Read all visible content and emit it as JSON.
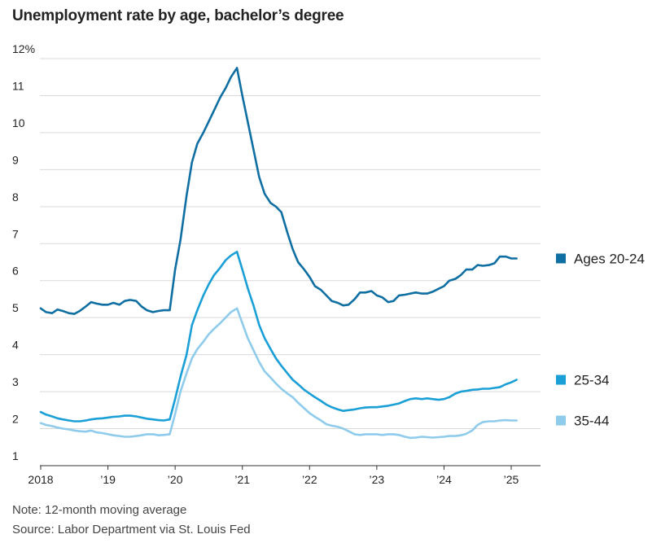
{
  "title": "Unemployment rate by age, bachelor’s degree",
  "note": "Note: 12-month moving average",
  "source": "Source: Labor Department via St. Louis Fed",
  "chart_data": {
    "type": "line",
    "title": "Unemployment rate by age, bachelor’s degree",
    "xlabel": "",
    "ylabel": "",
    "xlim": [
      2018,
      2025.45
    ],
    "ylim": [
      1,
      12
    ],
    "grid": true,
    "legend": "right",
    "x_ticks": [
      {
        "value": 2018,
        "label": "2018"
      },
      {
        "value": 2019,
        "label": "’19"
      },
      {
        "value": 2020,
        "label": "’20"
      },
      {
        "value": 2021,
        "label": "’21"
      },
      {
        "value": 2022,
        "label": "’22"
      },
      {
        "value": 2023,
        "label": "’23"
      },
      {
        "value": 2024,
        "label": "’24"
      },
      {
        "value": 2025,
        "label": "’25"
      }
    ],
    "y_ticks": [
      {
        "value": 12,
        "label": "12%"
      },
      {
        "value": 11,
        "label": "11"
      },
      {
        "value": 10,
        "label": "10"
      },
      {
        "value": 9,
        "label": "9"
      },
      {
        "value": 8,
        "label": "8"
      },
      {
        "value": 7,
        "label": "7"
      },
      {
        "value": 6,
        "label": "6"
      },
      {
        "value": 5,
        "label": "5"
      },
      {
        "value": 4,
        "label": "4"
      },
      {
        "value": 3,
        "label": "3"
      },
      {
        "value": 2,
        "label": "2"
      },
      {
        "value": 1,
        "label": "1"
      }
    ],
    "series": [
      {
        "name": "Ages 20-24",
        "color": "#0f6fa3",
        "points": [
          [
            2018.0,
            5.25
          ],
          [
            2018.08,
            5.15
          ],
          [
            2018.17,
            5.12
          ],
          [
            2018.25,
            5.22
          ],
          [
            2018.33,
            5.18
          ],
          [
            2018.42,
            5.12
          ],
          [
            2018.5,
            5.1
          ],
          [
            2018.58,
            5.18
          ],
          [
            2018.67,
            5.3
          ],
          [
            2018.75,
            5.42
          ],
          [
            2018.83,
            5.38
          ],
          [
            2018.92,
            5.35
          ],
          [
            2019.0,
            5.35
          ],
          [
            2019.08,
            5.4
          ],
          [
            2019.17,
            5.35
          ],
          [
            2019.25,
            5.45
          ],
          [
            2019.33,
            5.48
          ],
          [
            2019.42,
            5.45
          ],
          [
            2019.5,
            5.3
          ],
          [
            2019.58,
            5.2
          ],
          [
            2019.67,
            5.15
          ],
          [
            2019.75,
            5.18
          ],
          [
            2019.83,
            5.2
          ],
          [
            2019.92,
            5.2
          ],
          [
            2020.0,
            6.3
          ],
          [
            2020.08,
            7.1
          ],
          [
            2020.17,
            8.3
          ],
          [
            2020.25,
            9.2
          ],
          [
            2020.33,
            9.7
          ],
          [
            2020.42,
            10.0
          ],
          [
            2020.5,
            10.3
          ],
          [
            2020.58,
            10.6
          ],
          [
            2020.67,
            10.95
          ],
          [
            2020.75,
            11.2
          ],
          [
            2020.83,
            11.5
          ],
          [
            2020.92,
            11.75
          ],
          [
            2021.0,
            11.0
          ],
          [
            2021.08,
            10.3
          ],
          [
            2021.17,
            9.5
          ],
          [
            2021.25,
            8.8
          ],
          [
            2021.33,
            8.35
          ],
          [
            2021.42,
            8.1
          ],
          [
            2021.5,
            8.0
          ],
          [
            2021.58,
            7.85
          ],
          [
            2021.67,
            7.3
          ],
          [
            2021.75,
            6.85
          ],
          [
            2021.83,
            6.5
          ],
          [
            2021.92,
            6.3
          ],
          [
            2022.0,
            6.1
          ],
          [
            2022.08,
            5.85
          ],
          [
            2022.17,
            5.75
          ],
          [
            2022.25,
            5.6
          ],
          [
            2022.33,
            5.45
          ],
          [
            2022.42,
            5.4
          ],
          [
            2022.5,
            5.33
          ],
          [
            2022.58,
            5.35
          ],
          [
            2022.67,
            5.5
          ],
          [
            2022.75,
            5.68
          ],
          [
            2022.83,
            5.68
          ],
          [
            2022.92,
            5.72
          ],
          [
            2023.0,
            5.6
          ],
          [
            2023.08,
            5.55
          ],
          [
            2023.17,
            5.42
          ],
          [
            2023.25,
            5.45
          ],
          [
            2023.33,
            5.6
          ],
          [
            2023.42,
            5.62
          ],
          [
            2023.5,
            5.65
          ],
          [
            2023.58,
            5.68
          ],
          [
            2023.67,
            5.65
          ],
          [
            2023.75,
            5.65
          ],
          [
            2023.83,
            5.7
          ],
          [
            2023.92,
            5.78
          ],
          [
            2024.0,
            5.85
          ],
          [
            2024.08,
            6.0
          ],
          [
            2024.17,
            6.05
          ],
          [
            2024.25,
            6.15
          ],
          [
            2024.33,
            6.3
          ],
          [
            2024.42,
            6.3
          ],
          [
            2024.5,
            6.42
          ],
          [
            2024.58,
            6.4
          ],
          [
            2024.67,
            6.42
          ],
          [
            2024.75,
            6.47
          ],
          [
            2024.83,
            6.65
          ],
          [
            2024.92,
            6.65
          ],
          [
            2025.0,
            6.6
          ],
          [
            2025.08,
            6.6
          ]
        ]
      },
      {
        "name": "25-34",
        "color": "#1a9fd6",
        "points": [
          [
            2018.0,
            2.45
          ],
          [
            2018.08,
            2.38
          ],
          [
            2018.17,
            2.33
          ],
          [
            2018.25,
            2.28
          ],
          [
            2018.33,
            2.25
          ],
          [
            2018.42,
            2.22
          ],
          [
            2018.5,
            2.2
          ],
          [
            2018.58,
            2.2
          ],
          [
            2018.67,
            2.22
          ],
          [
            2018.75,
            2.25
          ],
          [
            2018.83,
            2.27
          ],
          [
            2018.92,
            2.28
          ],
          [
            2019.0,
            2.3
          ],
          [
            2019.08,
            2.32
          ],
          [
            2019.17,
            2.33
          ],
          [
            2019.25,
            2.35
          ],
          [
            2019.33,
            2.35
          ],
          [
            2019.42,
            2.33
          ],
          [
            2019.5,
            2.3
          ],
          [
            2019.58,
            2.27
          ],
          [
            2019.67,
            2.25
          ],
          [
            2019.75,
            2.23
          ],
          [
            2019.83,
            2.22
          ],
          [
            2019.92,
            2.25
          ],
          [
            2020.0,
            2.8
          ],
          [
            2020.08,
            3.4
          ],
          [
            2020.17,
            4.0
          ],
          [
            2020.25,
            4.8
          ],
          [
            2020.33,
            5.2
          ],
          [
            2020.42,
            5.6
          ],
          [
            2020.5,
            5.9
          ],
          [
            2020.58,
            6.15
          ],
          [
            2020.67,
            6.35
          ],
          [
            2020.75,
            6.55
          ],
          [
            2020.83,
            6.68
          ],
          [
            2020.92,
            6.78
          ],
          [
            2021.0,
            6.3
          ],
          [
            2021.08,
            5.8
          ],
          [
            2021.17,
            5.3
          ],
          [
            2021.25,
            4.8
          ],
          [
            2021.33,
            4.45
          ],
          [
            2021.42,
            4.15
          ],
          [
            2021.5,
            3.9
          ],
          [
            2021.58,
            3.7
          ],
          [
            2021.67,
            3.5
          ],
          [
            2021.75,
            3.32
          ],
          [
            2021.83,
            3.2
          ],
          [
            2021.92,
            3.05
          ],
          [
            2022.0,
            2.95
          ],
          [
            2022.08,
            2.85
          ],
          [
            2022.17,
            2.75
          ],
          [
            2022.25,
            2.65
          ],
          [
            2022.33,
            2.58
          ],
          [
            2022.42,
            2.52
          ],
          [
            2022.5,
            2.48
          ],
          [
            2022.58,
            2.5
          ],
          [
            2022.67,
            2.52
          ],
          [
            2022.75,
            2.55
          ],
          [
            2022.83,
            2.57
          ],
          [
            2022.92,
            2.58
          ],
          [
            2023.0,
            2.58
          ],
          [
            2023.08,
            2.6
          ],
          [
            2023.17,
            2.62
          ],
          [
            2023.25,
            2.65
          ],
          [
            2023.33,
            2.68
          ],
          [
            2023.42,
            2.75
          ],
          [
            2023.5,
            2.8
          ],
          [
            2023.58,
            2.82
          ],
          [
            2023.67,
            2.8
          ],
          [
            2023.75,
            2.82
          ],
          [
            2023.83,
            2.8
          ],
          [
            2023.92,
            2.78
          ],
          [
            2024.0,
            2.8
          ],
          [
            2024.08,
            2.85
          ],
          [
            2024.17,
            2.95
          ],
          [
            2024.25,
            3.0
          ],
          [
            2024.33,
            3.02
          ],
          [
            2024.42,
            3.05
          ],
          [
            2024.5,
            3.06
          ],
          [
            2024.58,
            3.08
          ],
          [
            2024.67,
            3.08
          ],
          [
            2024.75,
            3.1
          ],
          [
            2024.83,
            3.12
          ],
          [
            2024.92,
            3.2
          ],
          [
            2025.0,
            3.25
          ],
          [
            2025.08,
            3.32
          ]
        ]
      },
      {
        "name": "35-44",
        "color": "#8fcbeb",
        "points": [
          [
            2018.0,
            2.15
          ],
          [
            2018.08,
            2.1
          ],
          [
            2018.17,
            2.07
          ],
          [
            2018.25,
            2.03
          ],
          [
            2018.33,
            2.0
          ],
          [
            2018.42,
            1.98
          ],
          [
            2018.5,
            1.95
          ],
          [
            2018.58,
            1.93
          ],
          [
            2018.67,
            1.92
          ],
          [
            2018.75,
            1.95
          ],
          [
            2018.83,
            1.9
          ],
          [
            2018.92,
            1.88
          ],
          [
            2019.0,
            1.85
          ],
          [
            2019.08,
            1.82
          ],
          [
            2019.17,
            1.8
          ],
          [
            2019.25,
            1.78
          ],
          [
            2019.33,
            1.78
          ],
          [
            2019.42,
            1.8
          ],
          [
            2019.5,
            1.82
          ],
          [
            2019.58,
            1.85
          ],
          [
            2019.67,
            1.85
          ],
          [
            2019.75,
            1.82
          ],
          [
            2019.83,
            1.83
          ],
          [
            2019.92,
            1.85
          ],
          [
            2020.0,
            2.4
          ],
          [
            2020.08,
            3.0
          ],
          [
            2020.17,
            3.5
          ],
          [
            2020.25,
            3.9
          ],
          [
            2020.33,
            4.15
          ],
          [
            2020.42,
            4.35
          ],
          [
            2020.5,
            4.55
          ],
          [
            2020.58,
            4.7
          ],
          [
            2020.67,
            4.85
          ],
          [
            2020.75,
            5.0
          ],
          [
            2020.83,
            5.15
          ],
          [
            2020.92,
            5.25
          ],
          [
            2021.0,
            4.85
          ],
          [
            2021.08,
            4.45
          ],
          [
            2021.17,
            4.1
          ],
          [
            2021.25,
            3.8
          ],
          [
            2021.33,
            3.55
          ],
          [
            2021.42,
            3.38
          ],
          [
            2021.5,
            3.22
          ],
          [
            2021.58,
            3.08
          ],
          [
            2021.67,
            2.95
          ],
          [
            2021.75,
            2.85
          ],
          [
            2021.83,
            2.7
          ],
          [
            2021.92,
            2.55
          ],
          [
            2022.0,
            2.42
          ],
          [
            2022.08,
            2.32
          ],
          [
            2022.17,
            2.22
          ],
          [
            2022.25,
            2.12
          ],
          [
            2022.33,
            2.08
          ],
          [
            2022.42,
            2.05
          ],
          [
            2022.5,
            2.0
          ],
          [
            2022.58,
            1.93
          ],
          [
            2022.67,
            1.85
          ],
          [
            2022.75,
            1.83
          ],
          [
            2022.83,
            1.85
          ],
          [
            2022.92,
            1.85
          ],
          [
            2023.0,
            1.85
          ],
          [
            2023.08,
            1.83
          ],
          [
            2023.17,
            1.85
          ],
          [
            2023.25,
            1.85
          ],
          [
            2023.33,
            1.83
          ],
          [
            2023.42,
            1.78
          ],
          [
            2023.5,
            1.75
          ],
          [
            2023.58,
            1.76
          ],
          [
            2023.67,
            1.78
          ],
          [
            2023.75,
            1.77
          ],
          [
            2023.83,
            1.76
          ],
          [
            2023.92,
            1.77
          ],
          [
            2024.0,
            1.78
          ],
          [
            2024.08,
            1.8
          ],
          [
            2024.17,
            1.8
          ],
          [
            2024.25,
            1.82
          ],
          [
            2024.33,
            1.86
          ],
          [
            2024.42,
            1.95
          ],
          [
            2024.5,
            2.1
          ],
          [
            2024.58,
            2.18
          ],
          [
            2024.67,
            2.2
          ],
          [
            2024.75,
            2.2
          ],
          [
            2024.83,
            2.22
          ],
          [
            2024.92,
            2.23
          ],
          [
            2025.0,
            2.22
          ],
          [
            2025.08,
            2.22
          ]
        ]
      }
    ]
  }
}
